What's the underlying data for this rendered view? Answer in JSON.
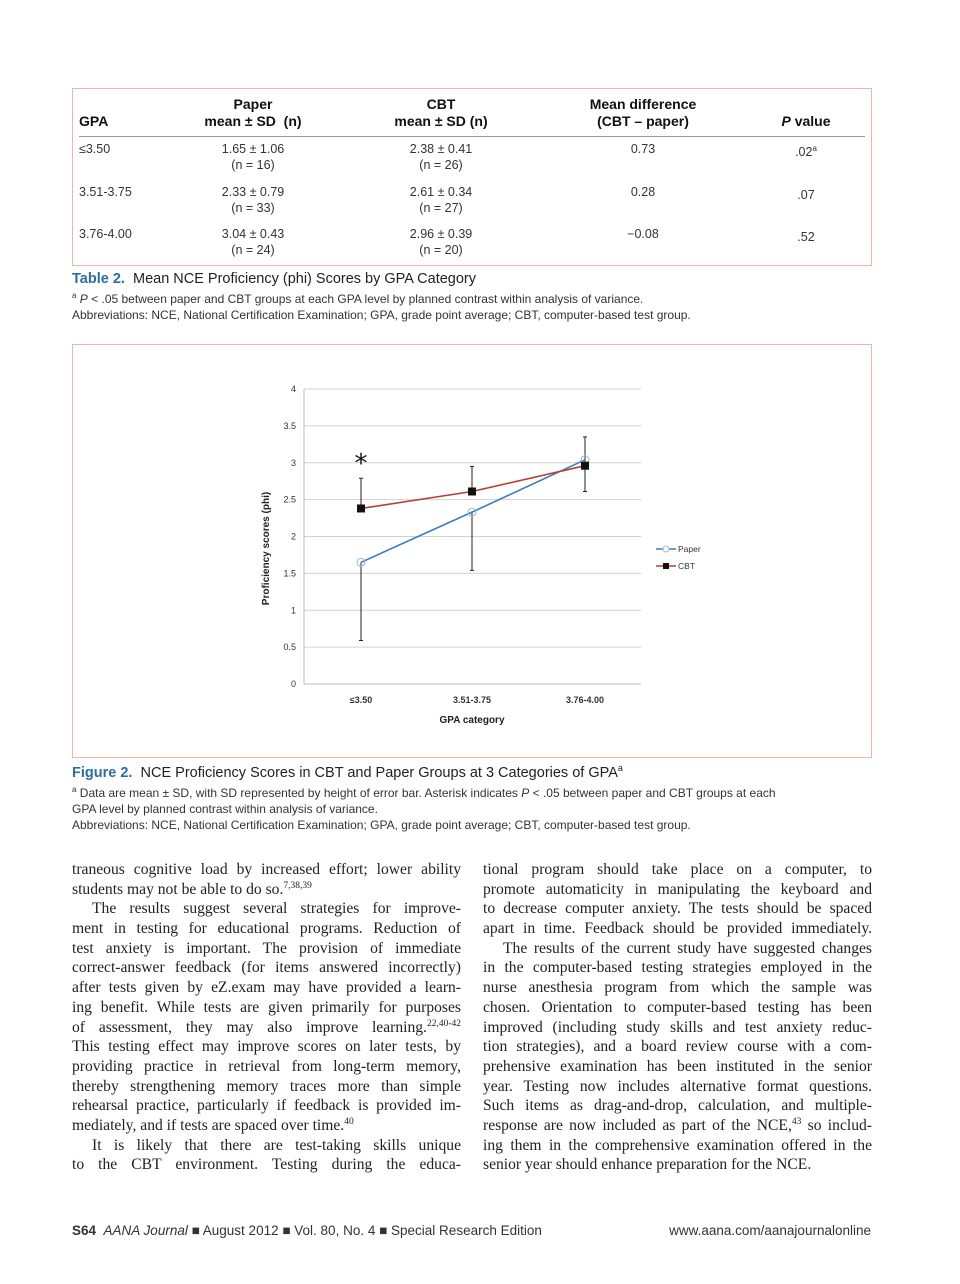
{
  "table": {
    "headers": {
      "gpa": "GPA",
      "paper_l1": "Paper",
      "paper_l2": "mean ± SD  (n)",
      "cbt_l1": "CBT",
      "cbt_l2": "mean ± SD (n)",
      "diff_l1": "Mean difference",
      "diff_l2": "(CBT – paper)",
      "p_italic": "P",
      "p_rest": " value"
    },
    "rows": [
      {
        "gpa": "≤3.50",
        "paper": "1.65 ± 1.06",
        "paper_n": "(n = 16)",
        "cbt": "2.38 ± 0.41",
        "cbt_n": "(n = 26)",
        "diff": "0.73",
        "p": ".02",
        "p_sup": "a"
      },
      {
        "gpa": "3.51-3.75",
        "paper": "2.33 ± 0.79",
        "paper_n": "(n = 33)",
        "cbt": "2.61 ± 0.34",
        "cbt_n": "(n = 27)",
        "diff": "0.28",
        "p": ".07",
        "p_sup": ""
      },
      {
        "gpa": "3.76-4.00",
        "paper": "3.04 ± 0.43",
        "paper_n": "(n = 24)",
        "cbt": "2.96 ± 0.39",
        "cbt_n": "(n = 20)",
        "diff": "−0.08",
        "p": ".52",
        "p_sup": ""
      }
    ],
    "caption_label": "Table 2.",
    "caption_title": "Mean NCE Proficiency (phi) Scores by GPA Category",
    "note_sup": "a",
    "note_p": "P",
    "note_text": " < .05 between paper and CBT groups at each GPA level by planned contrast within analysis of variance.",
    "abbrev": "Abbreviations: NCE, National Certification Examination; GPA, grade point average; CBT, computer-based test group."
  },
  "figure": {
    "caption_label": "Figure 2.",
    "caption_title": "NCE Proficiency Scores in CBT and Paper Groups at 3 Categories of GPA",
    "caption_sup": "a",
    "note_sup": "a",
    "note_text1": " Data are mean ± SD, with SD represented by height of error bar. Asterisk indicates ",
    "note_p": "P",
    "note_text2": " < .05 between paper and CBT groups at each",
    "note_line2": "GPA level by planned contrast within analysis of variance.",
    "abbrev": "Abbreviations: NCE, National Certification Examination; GPA, grade point average; CBT, computer-based test group."
  },
  "chart_data": {
    "type": "line",
    "title": "",
    "xlabel": "GPA category",
    "ylabel": "Proficiency scores (phi)",
    "ylim": [
      0,
      4
    ],
    "yticks": [
      "0",
      "0.5",
      "1",
      "1.5",
      "2",
      "2.5",
      "3",
      "3.5",
      "4"
    ],
    "categories": [
      "≤3.50",
      "3.51-3.75",
      "3.76-4.00"
    ],
    "grid": true,
    "legend_position": "right",
    "annotation": "*",
    "annotation_category": "≤3.50",
    "series": [
      {
        "name": "Paper",
        "color": "#3a7cc0",
        "marker": "open-circle",
        "values": [
          1.65,
          2.33,
          3.04
        ],
        "sd": [
          1.06,
          0.79,
          0.43
        ],
        "error_direction": "down"
      },
      {
        "name": "CBT",
        "color": "#b5403a",
        "marker": "filled-square",
        "values": [
          2.38,
          2.61,
          2.96
        ],
        "sd": [
          0.41,
          0.34,
          0.39
        ],
        "error_direction": "up"
      }
    ]
  },
  "body": {
    "left": [
      {
        "t": "traneous cognitive load by increased effort; lower ability"
      },
      {
        "t": "students may not be able to do so.",
        "sup": "7,38,39",
        "last": true
      },
      {
        "t": "The results suggest several strategies for improve-",
        "ind": true
      },
      {
        "t": "ment in testing for educational programs. Reduction of"
      },
      {
        "t": "test anxiety is important. The provision of immediate"
      },
      {
        "t": "correct-answer feedback (for items answered incorrectly)"
      },
      {
        "t": "after tests given by eZ.exam may have provided a learn-"
      },
      {
        "t": "ing benefit. While tests are given primarily for purposes"
      },
      {
        "t": "of assessment, they may also improve learning.",
        "sup": "22,40-42"
      },
      {
        "t": "This testing effect may improve scores on later tests, by"
      },
      {
        "t": "providing practice in retrieval from long-term memory,"
      },
      {
        "t": "thereby strengthening memory traces more than simple"
      },
      {
        "t": "rehearsal practice, particularly if feedback is provided im-"
      },
      {
        "t": "mediately, and if tests are spaced over time.",
        "sup": "40",
        "last": true
      },
      {
        "t": "It is likely that there are test-taking skills unique",
        "ind": true
      },
      {
        "t": "to the CBT environment. Testing during the educa-"
      }
    ],
    "right": [
      {
        "t": "tional program should take place on a computer, to"
      },
      {
        "t": "promote automaticity in manipulating the keyboard and"
      },
      {
        "t": "to decrease computer anxiety. The tests should be spaced"
      },
      {
        "t": "apart in time. Feedback should be provided immediately."
      },
      {
        "t": "The results of the current study have suggested changes",
        "ind": true
      },
      {
        "t": "in the computer-based testing strategies employed in the"
      },
      {
        "t": "nurse anesthesia program from which the sample was"
      },
      {
        "t": "chosen. Orientation to computer-based testing has been"
      },
      {
        "t": "improved (including study skills and test anxiety reduc-"
      },
      {
        "t": "tion strategies), and a board review course with a com-"
      },
      {
        "t": "prehensive examination has been instituted in the senior"
      },
      {
        "t": "year. Testing now includes alternative format questions."
      },
      {
        "t": "Such items as drag-and-drop, calculation, and multiple-"
      },
      {
        "t": "response are now included as part of the NCE,",
        "sup": "43",
        "after": " so includ-"
      },
      {
        "t": "ing them in the comprehensive examination offered in the"
      },
      {
        "t": "senior year should enhance preparation for the NCE.",
        "last": true
      }
    ]
  },
  "footer": {
    "page": "S64",
    "journal": "AANA Journal",
    "sep": "■",
    "date": "August 2012",
    "volume": "Vol. 80, No. 4",
    "edition": "Special Research Edition",
    "url": "www.aana.com/aanajournalonline"
  }
}
